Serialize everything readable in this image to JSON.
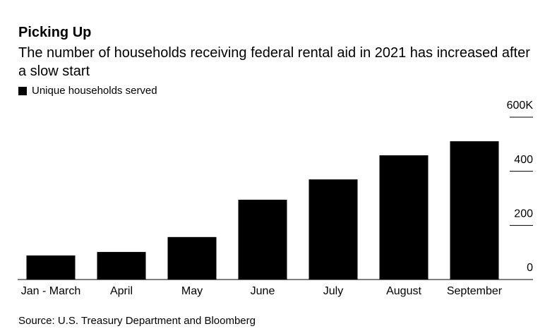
{
  "chart_data": {
    "type": "bar",
    "title": "Picking Up",
    "subtitle": "The number of households receiving federal rental aid in 2021 has increased after a slow start",
    "source": "Source: U.S. Treasury Department and Bloomberg",
    "categories": [
      "Jan - March",
      "April",
      "May",
      "June",
      "July",
      "August",
      "September"
    ],
    "series": [
      {
        "name": "Unique households served",
        "color": "#000000",
        "values": [
          89,
          102,
          157,
          295,
          370,
          459,
          511
        ]
      }
    ],
    "ylim": [
      0,
      600
    ],
    "yticks": [
      0,
      200,
      400,
      {
        "value": 600,
        "label": "600K"
      }
    ],
    "y_axis_side": "right"
  }
}
